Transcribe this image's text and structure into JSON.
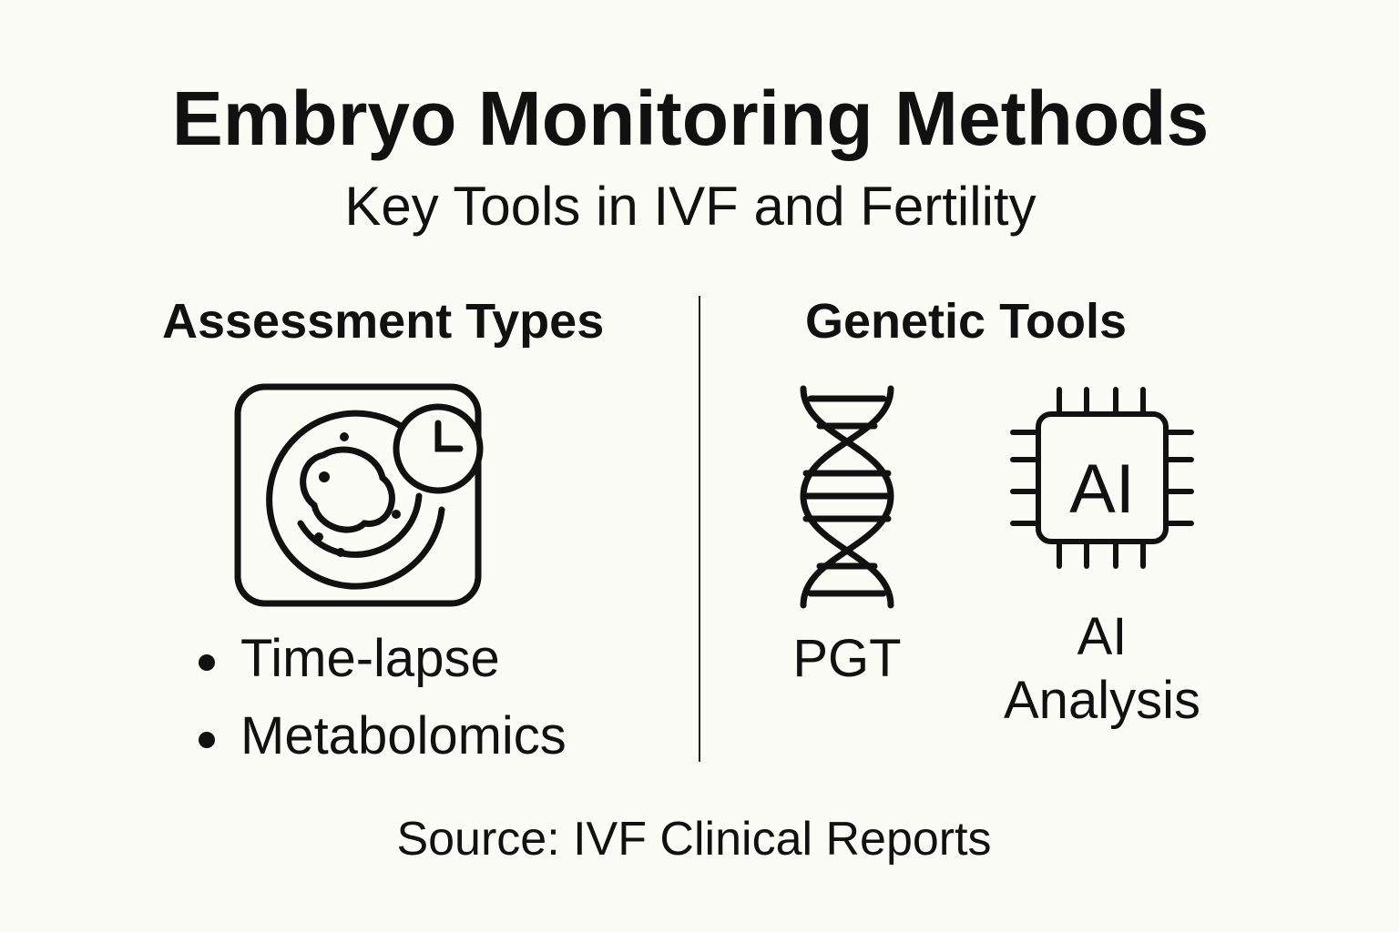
{
  "title": "Embryo Monitoring Methods",
  "subtitle": "Key Tools in IVF and Fertility",
  "left": {
    "heading": "Assessment Types",
    "icon": "time-lapse-embryo-icon",
    "items": [
      "Time-lapse",
      "Metabolomics"
    ]
  },
  "right": {
    "heading": "Genetic Tools",
    "tools": [
      {
        "label": "PGT",
        "icon": "dna-icon"
      },
      {
        "label_line1": "AI",
        "label_line2": "Analysis",
        "icon": "ai-chip-icon",
        "chip_text": "AI"
      }
    ]
  },
  "source": "Source: IVF Clinical Reports"
}
